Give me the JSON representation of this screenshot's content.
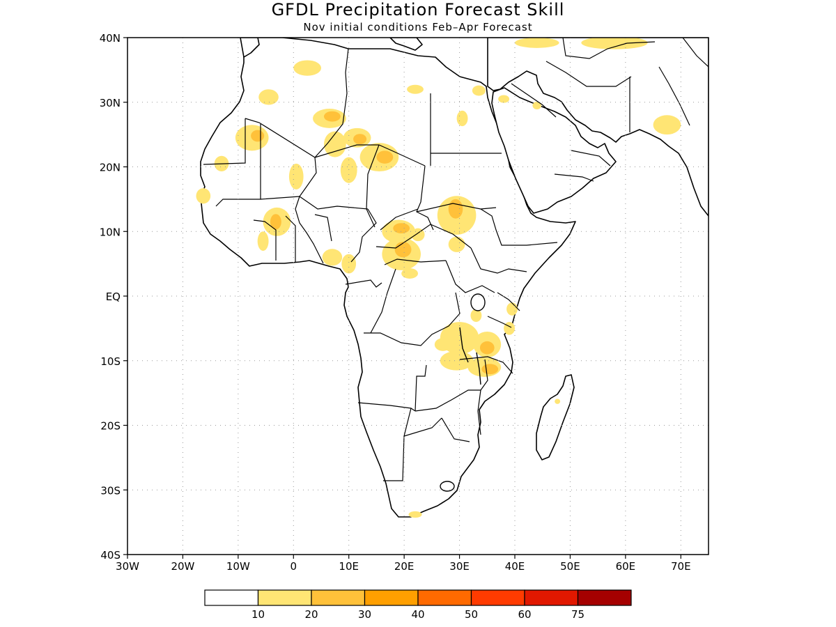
{
  "title": "GFDL Precipitation Forecast Skill",
  "subtitle": "Nov initial conditions  Feb–Apr Forecast",
  "map": {
    "lon_range": [
      -30,
      75
    ],
    "lat_range": [
      -40,
      40
    ],
    "lon_ticks": [
      {
        "lon": -30,
        "label": "30W"
      },
      {
        "lon": -20,
        "label": "20W"
      },
      {
        "lon": -10,
        "label": "10W"
      },
      {
        "lon": 0,
        "label": "0"
      },
      {
        "lon": 10,
        "label": "10E"
      },
      {
        "lon": 20,
        "label": "20E"
      },
      {
        "lon": 30,
        "label": "30E"
      },
      {
        "lon": 40,
        "label": "40E"
      },
      {
        "lon": 50,
        "label": "50E"
      },
      {
        "lon": 60,
        "label": "60E"
      },
      {
        "lon": 70,
        "label": "70E"
      }
    ],
    "lat_ticks": [
      {
        "lat": 40,
        "label": "40N"
      },
      {
        "lat": 30,
        "label": "30N"
      },
      {
        "lat": 20,
        "label": "20N"
      },
      {
        "lat": 10,
        "label": "10N"
      },
      {
        "lat": 0,
        "label": "EQ"
      },
      {
        "lat": -10,
        "label": "10S"
      },
      {
        "lat": -20,
        "label": "20S"
      },
      {
        "lat": -30,
        "label": "30S"
      },
      {
        "lat": -40,
        "label": "40S"
      }
    ],
    "grid": "dotted",
    "skill_regions": [
      {
        "level": 1,
        "lon": -7.5,
        "lat": 24.5,
        "rx": 3,
        "ry": 2
      },
      {
        "level": 2,
        "lon": -6.5,
        "lat": 24.8,
        "rx": 1.2,
        "ry": 0.9
      },
      {
        "level": 1,
        "lon": -4.5,
        "lat": 30.8,
        "rx": 1.8,
        "ry": 1.2
      },
      {
        "level": 1,
        "lon": 2.5,
        "lat": 35.3,
        "rx": 2.5,
        "ry": 1.2
      },
      {
        "level": 1,
        "lon": 6.5,
        "lat": 27.5,
        "rx": 3,
        "ry": 1.5
      },
      {
        "level": 2,
        "lon": 7,
        "lat": 27.8,
        "rx": 1.5,
        "ry": 0.8
      },
      {
        "level": 1,
        "lon": 7.5,
        "lat": 23.5,
        "rx": 2,
        "ry": 2
      },
      {
        "level": 1,
        "lon": 11.5,
        "lat": 24.5,
        "rx": 2.5,
        "ry": 1.5
      },
      {
        "level": 2,
        "lon": 12,
        "lat": 24.3,
        "rx": 1.2,
        "ry": 0.8
      },
      {
        "level": 1,
        "lon": 15.5,
        "lat": 21.5,
        "rx": 3.5,
        "ry": 2.2
      },
      {
        "level": 2,
        "lon": 16.5,
        "lat": 21.5,
        "rx": 1.5,
        "ry": 1
      },
      {
        "level": 1,
        "lon": 10,
        "lat": 19.5,
        "rx": 1.5,
        "ry": 2
      },
      {
        "level": 1,
        "lon": 0.5,
        "lat": 18.5,
        "rx": 1.3,
        "ry": 2
      },
      {
        "level": 1,
        "lon": -13,
        "lat": 20.5,
        "rx": 1.3,
        "ry": 1.2
      },
      {
        "level": 1,
        "lon": -16.3,
        "lat": 15.5,
        "rx": 1.3,
        "ry": 1.2
      },
      {
        "level": 1,
        "lon": -3,
        "lat": 11.5,
        "rx": 2.5,
        "ry": 2.2
      },
      {
        "level": 2,
        "lon": -3.2,
        "lat": 11.5,
        "rx": 1,
        "ry": 1.2
      },
      {
        "level": 1,
        "lon": -5.5,
        "lat": 8.5,
        "rx": 1,
        "ry": 1.5
      },
      {
        "level": 1,
        "lon": 7,
        "lat": 6,
        "rx": 1.8,
        "ry": 1.3
      },
      {
        "level": 1,
        "lon": 10,
        "lat": 5,
        "rx": 1.3,
        "ry": 1.5
      },
      {
        "level": 1,
        "lon": 19,
        "lat": 10,
        "rx": 3,
        "ry": 1.8
      },
      {
        "level": 2,
        "lon": 19.5,
        "lat": 10.5,
        "rx": 1.5,
        "ry": 0.8
      },
      {
        "level": 1,
        "lon": 19.5,
        "lat": 6.5,
        "rx": 3.5,
        "ry": 2.5
      },
      {
        "level": 2,
        "lon": 19.8,
        "lat": 7.2,
        "rx": 1.5,
        "ry": 1.2
      },
      {
        "level": 1,
        "lon": 22.5,
        "lat": 9.5,
        "rx": 1.2,
        "ry": 1
      },
      {
        "level": 1,
        "lon": 21,
        "lat": 3.5,
        "rx": 1.5,
        "ry": 0.8
      },
      {
        "level": 1,
        "lon": 29.5,
        "lat": 12.5,
        "rx": 3.5,
        "ry": 3
      },
      {
        "level": 2,
        "lon": 29.3,
        "lat": 13.5,
        "rx": 1.3,
        "ry": 1.5
      },
      {
        "level": 1,
        "lon": 29.5,
        "lat": 8,
        "rx": 1.5,
        "ry": 1.2
      },
      {
        "level": 1,
        "lon": 30.5,
        "lat": 27.5,
        "rx": 1,
        "ry": 1.2
      },
      {
        "level": 1,
        "lon": 22,
        "lat": 32,
        "rx": 1.5,
        "ry": 0.7
      },
      {
        "level": 1,
        "lon": 33.5,
        "lat": 31.8,
        "rx": 1.2,
        "ry": 0.8
      },
      {
        "level": 1,
        "lon": 38,
        "lat": 30.5,
        "rx": 1,
        "ry": 0.6
      },
      {
        "level": 1,
        "lon": 44,
        "lat": 29.5,
        "rx": 0.8,
        "ry": 0.6
      },
      {
        "level": 1,
        "lon": 67.5,
        "lat": 26.5,
        "rx": 2.5,
        "ry": 1.5
      },
      {
        "level": 1,
        "lon": 58,
        "lat": 39.2,
        "rx": 6,
        "ry": 1
      },
      {
        "level": 1,
        "lon": 44,
        "lat": 39.2,
        "rx": 4,
        "ry": 0.8
      },
      {
        "level": 1,
        "lon": 30,
        "lat": -6.5,
        "rx": 3.5,
        "ry": 2.5
      },
      {
        "level": 1,
        "lon": 35,
        "lat": -7.5,
        "rx": 2.5,
        "ry": 2
      },
      {
        "level": 2,
        "lon": 35,
        "lat": -8,
        "rx": 1.3,
        "ry": 1
      },
      {
        "level": 1,
        "lon": 29.5,
        "lat": -10,
        "rx": 3,
        "ry": 1.5
      },
      {
        "level": 1,
        "lon": 34.5,
        "lat": -11,
        "rx": 3,
        "ry": 1.5
      },
      {
        "level": 2,
        "lon": 35.5,
        "lat": -11.3,
        "rx": 1.5,
        "ry": 0.8
      },
      {
        "level": 1,
        "lon": 27,
        "lat": -7.5,
        "rx": 1.5,
        "ry": 1
      },
      {
        "level": 1,
        "lon": 33,
        "lat": -3,
        "rx": 1,
        "ry": 1
      },
      {
        "level": 1,
        "lon": 39.5,
        "lat": -2,
        "rx": 1,
        "ry": 1
      },
      {
        "level": 1,
        "lon": 39,
        "lat": -5,
        "rx": 1,
        "ry": 1
      },
      {
        "level": 1,
        "lon": 22,
        "lat": -33.8,
        "rx": 1.2,
        "ry": 0.5
      },
      {
        "level": 1,
        "lon": 47.7,
        "lat": -16.3,
        "rx": 0.5,
        "ry": 0.4
      }
    ]
  },
  "legend": {
    "colors": [
      "#ffffff",
      "#ffe574",
      "#ffc13a",
      "#ff9f00",
      "#ff6a00",
      "#ff3b00",
      "#e11800",
      "#a50000"
    ],
    "labels": [
      "10",
      "20",
      "30",
      "40",
      "50",
      "60",
      "75"
    ]
  }
}
